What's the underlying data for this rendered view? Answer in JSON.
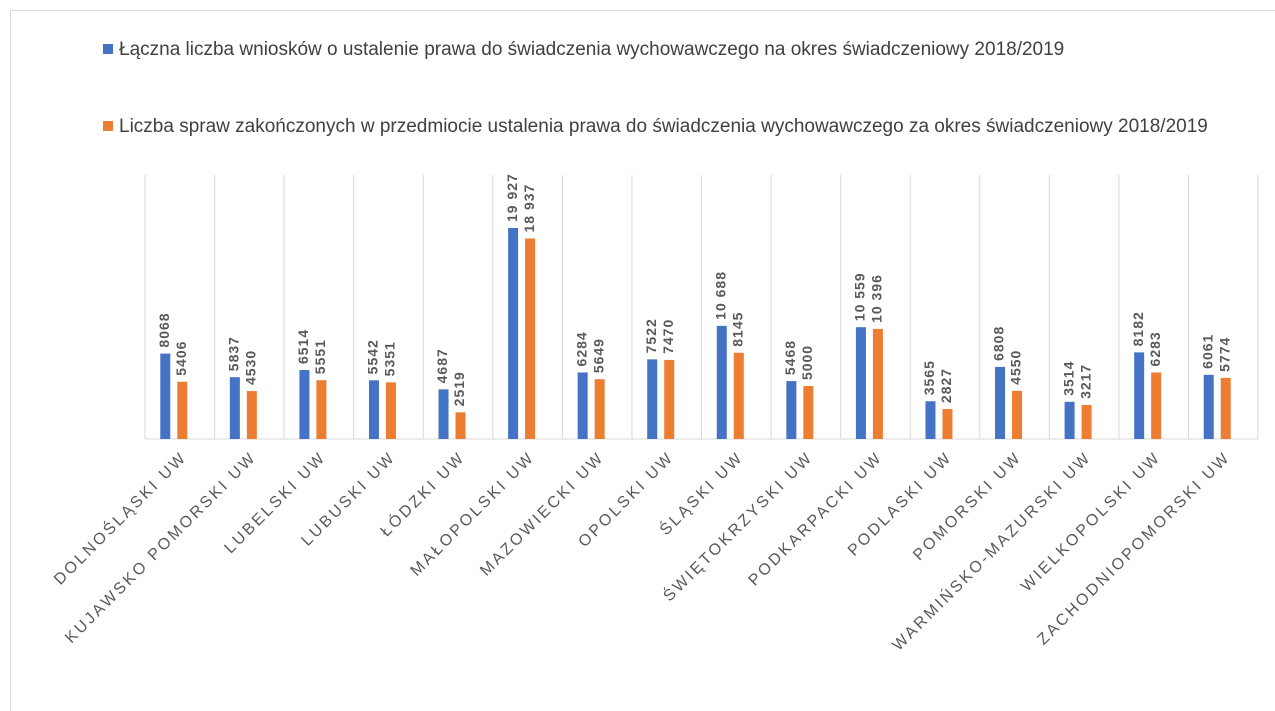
{
  "chart_data": {
    "type": "bar",
    "categories": [
      "DOLNOŚLĄSKI UW",
      "KUJAWSKO POMORSKI UW",
      "LUBELSKI UW",
      "LUBUSKI UW",
      "ŁÓDZKI UW",
      "MAŁOPOLSKI UW",
      "MAZOWIECKI UW",
      "OPOLSKI UW",
      "ŚLĄSKI UW",
      "ŚWIĘTOKRZYSKI UW",
      "PODKARPACKI UW",
      "PODLASKI UW",
      "POMORSKI UW",
      "WARMIŃSKO-MAZURSKI UW",
      "WIELKOPOLSKI UW",
      "ZACHODNIOPOMORSKI UW"
    ],
    "series": [
      {
        "name": "Łączna liczba wniosków o ustalenie prawa do świadczenia wychowawczego na okres świadczeniowy 2018/2019",
        "color": "#4472c4",
        "values": [
          8068,
          5837,
          6514,
          5542,
          4687,
          19927,
          6284,
          7522,
          10688,
          5468,
          10559,
          3565,
          6808,
          3514,
          8182,
          6061
        ],
        "value_labels": [
          "8068",
          "5837",
          "6514",
          "5542",
          "4687",
          "19 927",
          "6284",
          "7522",
          "10 688",
          "5468",
          "10 559",
          "3565",
          "6808",
          "3514",
          "8182",
          "6061"
        ]
      },
      {
        "name": "Liczba spraw zakończonych w przedmiocie ustalenia prawa do świadczenia wychowawczego za okres świadczeniowy 2018/2019",
        "color": "#ed7d31",
        "values": [
          5406,
          4530,
          5551,
          5351,
          2519,
          18937,
          5649,
          7470,
          8145,
          5000,
          10396,
          2827,
          4550,
          3217,
          6283,
          5774
        ],
        "value_labels": [
          "5406",
          "4530",
          "5551",
          "5351",
          "2519",
          "18 937",
          "5649",
          "7470",
          "8145",
          "5000",
          "10 396",
          "2827",
          "4550",
          "3217",
          "6283",
          "5774"
        ]
      }
    ]
  }
}
